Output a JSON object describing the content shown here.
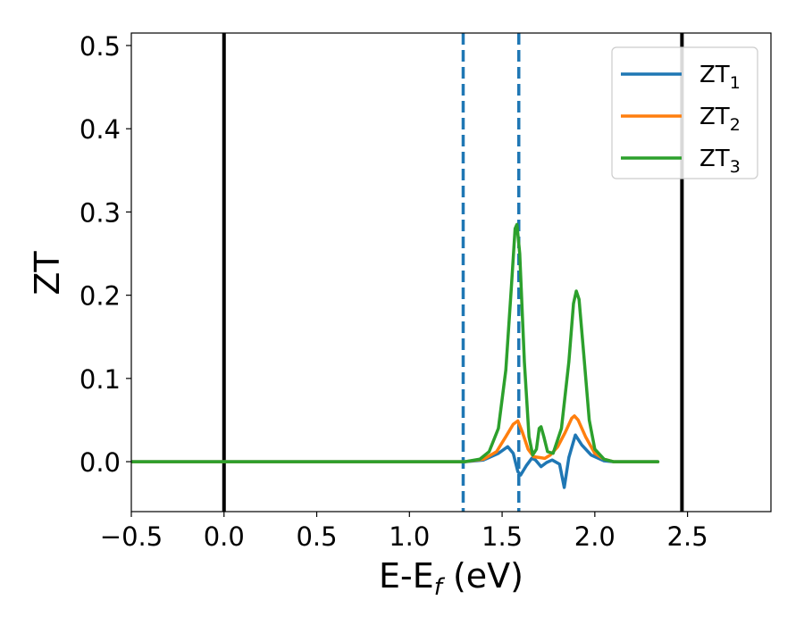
{
  "chart_data": {
    "type": "line",
    "xlabel_main": "E-E",
    "xlabel_sub": "f",
    "xlabel_unit": " (eV)",
    "ylabel": "ZT",
    "xlim": [
      -0.5,
      2.95
    ],
    "ylim": [
      -0.06,
      0.515
    ],
    "x_ticks": [
      -0.5,
      0.0,
      0.5,
      1.0,
      1.5,
      2.0,
      2.5
    ],
    "x_tick_labels": [
      "−0.5",
      "0.0",
      "0.5",
      "1.0",
      "1.5",
      "2.0",
      "2.5"
    ],
    "y_ticks": [
      0.0,
      0.1,
      0.2,
      0.3,
      0.4,
      0.5
    ],
    "y_tick_labels": [
      "0.0",
      "0.1",
      "0.2",
      "0.3",
      "0.4",
      "0.5"
    ],
    "grid": false,
    "legend_position": "top-right",
    "vertical_lines": [
      {
        "x": 0.0,
        "style": "solid",
        "color": "#000000"
      },
      {
        "x": 2.47,
        "style": "solid",
        "color": "#000000"
      },
      {
        "x": 1.29,
        "style": "dashed",
        "color": "#1f77b4"
      },
      {
        "x": 1.59,
        "style": "dashed",
        "color": "#1f77b4"
      }
    ],
    "series": [
      {
        "name": "ZT",
        "subscript": "1",
        "color": "#1f77b4",
        "points": [
          [
            -0.5,
            0
          ],
          [
            1.3,
            0
          ],
          [
            1.4,
            0.002
          ],
          [
            1.48,
            0.01
          ],
          [
            1.53,
            0.018
          ],
          [
            1.56,
            0.01
          ],
          [
            1.585,
            -0.012
          ],
          [
            1.6,
            -0.016
          ],
          [
            1.63,
            -0.005
          ],
          [
            1.66,
            0.004
          ],
          [
            1.68,
            0.002
          ],
          [
            1.71,
            -0.006
          ],
          [
            1.74,
            -0.001
          ],
          [
            1.77,
            0.002
          ],
          [
            1.81,
            -0.003
          ],
          [
            1.835,
            -0.031
          ],
          [
            1.86,
            0.005
          ],
          [
            1.895,
            0.032
          ],
          [
            1.93,
            0.02
          ],
          [
            1.98,
            0.008
          ],
          [
            2.05,
            0.001
          ],
          [
            2.1,
            0
          ],
          [
            2.34,
            0
          ]
        ]
      },
      {
        "name": "ZT",
        "subscript": "2",
        "color": "#ff7f0e",
        "points": [
          [
            -0.5,
            0
          ],
          [
            1.3,
            0
          ],
          [
            1.4,
            0.003
          ],
          [
            1.47,
            0.012
          ],
          [
            1.52,
            0.03
          ],
          [
            1.56,
            0.045
          ],
          [
            1.585,
            0.049
          ],
          [
            1.61,
            0.035
          ],
          [
            1.64,
            0.015
          ],
          [
            1.67,
            0.006
          ],
          [
            1.7,
            0.005
          ],
          [
            1.73,
            0.004
          ],
          [
            1.76,
            0.008
          ],
          [
            1.8,
            0.018
          ],
          [
            1.84,
            0.035
          ],
          [
            1.875,
            0.052
          ],
          [
            1.89,
            0.055
          ],
          [
            1.91,
            0.05
          ],
          [
            1.95,
            0.03
          ],
          [
            2.0,
            0.01
          ],
          [
            2.05,
            0.003
          ],
          [
            2.1,
            0
          ],
          [
            2.34,
            0
          ]
        ]
      },
      {
        "name": "ZT",
        "subscript": "3",
        "color": "#2ca02c",
        "points": [
          [
            -0.5,
            0
          ],
          [
            1.3,
            0
          ],
          [
            1.38,
            0.003
          ],
          [
            1.43,
            0.012
          ],
          [
            1.48,
            0.04
          ],
          [
            1.52,
            0.11
          ],
          [
            1.55,
            0.21
          ],
          [
            1.57,
            0.28
          ],
          [
            1.58,
            0.285
          ],
          [
            1.595,
            0.25
          ],
          [
            1.62,
            0.12
          ],
          [
            1.645,
            0.03
          ],
          [
            1.665,
            0.008
          ],
          [
            1.685,
            0.015
          ],
          [
            1.7,
            0.04
          ],
          [
            1.71,
            0.042
          ],
          [
            1.725,
            0.03
          ],
          [
            1.745,
            0.012
          ],
          [
            1.775,
            0.01
          ],
          [
            1.82,
            0.04
          ],
          [
            1.86,
            0.12
          ],
          [
            1.885,
            0.19
          ],
          [
            1.9,
            0.205
          ],
          [
            1.915,
            0.195
          ],
          [
            1.94,
            0.13
          ],
          [
            1.97,
            0.05
          ],
          [
            2.0,
            0.015
          ],
          [
            2.05,
            0.003
          ],
          [
            2.1,
            0
          ],
          [
            2.34,
            0
          ]
        ]
      }
    ]
  }
}
